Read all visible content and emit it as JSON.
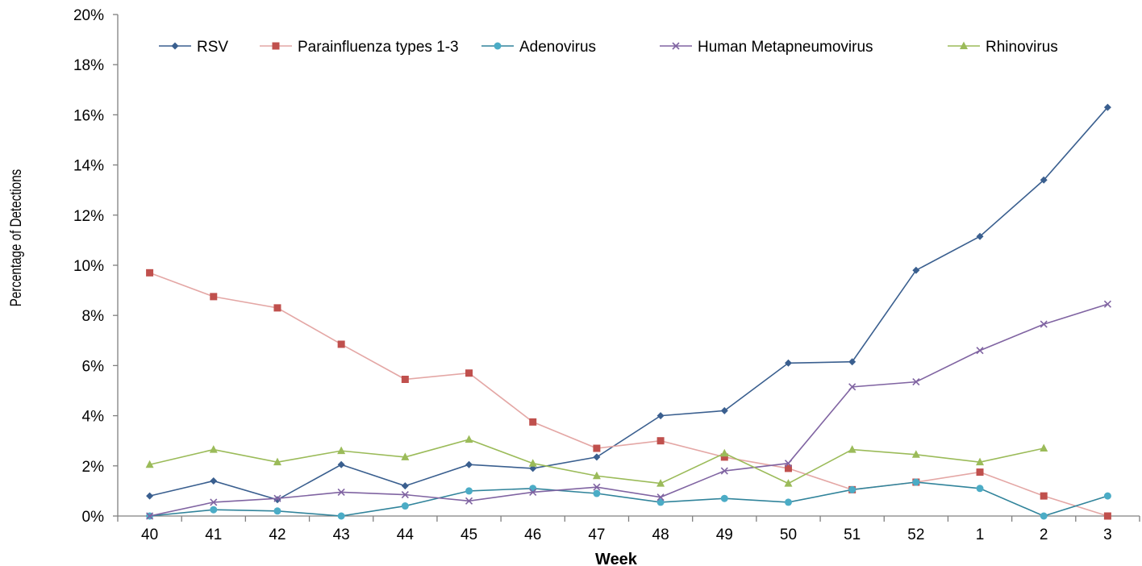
{
  "chart_data": {
    "type": "line",
    "title": "",
    "xlabel": "Week",
    "ylabel": "Percentage of Detections",
    "categories": [
      "40",
      "41",
      "42",
      "43",
      "44",
      "45",
      "46",
      "47",
      "48",
      "49",
      "50",
      "51",
      "52",
      "1",
      "2",
      "3"
    ],
    "y_ticks": [
      "0%",
      "2%",
      "4%",
      "6%",
      "8%",
      "10%",
      "12%",
      "14%",
      "16%",
      "18%",
      "20%"
    ],
    "ylim": [
      0,
      20
    ],
    "grid": false,
    "legend_position": "top",
    "series": [
      {
        "name": "RSV",
        "color": "#3A5F8F",
        "marker": "diamond",
        "values": [
          0.8,
          1.4,
          0.65,
          2.05,
          1.2,
          2.05,
          1.9,
          2.35,
          4.0,
          4.2,
          6.1,
          6.15,
          9.8,
          11.15,
          13.4,
          16.3
        ]
      },
      {
        "name": "Parainfluenza types 1-3",
        "color": "#C0504D",
        "line_color": "#E4A7A5",
        "marker": "square",
        "values": [
          9.7,
          8.75,
          8.3,
          6.85,
          5.45,
          5.7,
          3.75,
          2.7,
          3.0,
          2.35,
          1.9,
          1.05,
          1.35,
          1.75,
          0.8,
          0.0
        ]
      },
      {
        "name": "Adenovirus",
        "color": "#4BACC6",
        "line_color": "#31849B",
        "marker": "circle",
        "values": [
          0.0,
          0.25,
          0.2,
          0.0,
          0.4,
          1.0,
          1.1,
          0.9,
          0.55,
          0.7,
          0.55,
          1.05,
          1.35,
          1.1,
          0.0,
          0.8
        ]
      },
      {
        "name": "Human Metapneumovirus",
        "color": "#8064A2",
        "marker": "x",
        "values": [
          0.0,
          0.55,
          0.7,
          0.95,
          0.85,
          0.6,
          0.95,
          1.15,
          0.75,
          1.8,
          2.1,
          5.15,
          5.35,
          6.6,
          7.65,
          8.45
        ]
      },
      {
        "name": "Rhinovirus",
        "color": "#9BBB59",
        "marker": "triangle",
        "values": [
          2.05,
          2.65,
          2.15,
          2.6,
          2.35,
          3.05,
          2.1,
          1.6,
          1.3,
          2.5,
          1.3,
          2.65,
          2.45,
          2.15,
          2.7,
          null
        ]
      }
    ]
  }
}
